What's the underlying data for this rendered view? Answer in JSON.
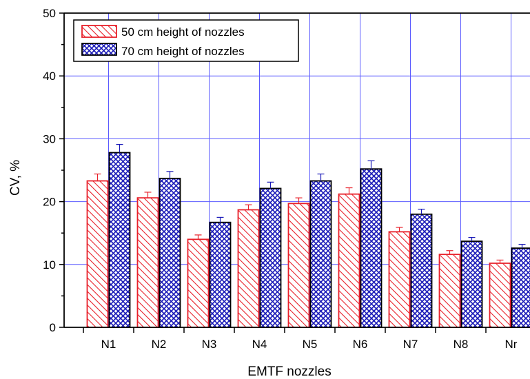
{
  "chart_data": {
    "type": "bar",
    "title": "",
    "xlabel": "EMTF nozzles",
    "ylabel": "CV, %",
    "categories": [
      "N1",
      "N2",
      "N3",
      "N4",
      "N5",
      "N6",
      "N7",
      "N8",
      "Nr"
    ],
    "series": [
      {
        "name": "50 cm height of nozzles",
        "values": [
          23.3,
          20.6,
          14.0,
          18.7,
          19.7,
          21.2,
          15.2,
          11.6,
          10.2
        ],
        "errors": [
          1.1,
          0.9,
          0.7,
          0.8,
          0.9,
          1.0,
          0.7,
          0.6,
          0.5
        ],
        "color": "#e8202a",
        "pattern": "diagonal-hatch"
      },
      {
        "name": "70 cm height of nozzles",
        "values": [
          27.8,
          23.7,
          16.7,
          22.1,
          23.3,
          25.2,
          18.0,
          13.7,
          12.6
        ],
        "errors": [
          1.3,
          1.1,
          0.8,
          1.0,
          1.1,
          1.3,
          0.8,
          0.6,
          0.6
        ],
        "color": "#1a1ab8",
        "pattern": "crosshatch"
      }
    ],
    "ylim": [
      0,
      50
    ],
    "yticks": [
      0,
      10,
      20,
      30,
      40,
      50
    ],
    "grid": true,
    "grid_color": "#5a5aff",
    "legend_position": "top-left"
  }
}
